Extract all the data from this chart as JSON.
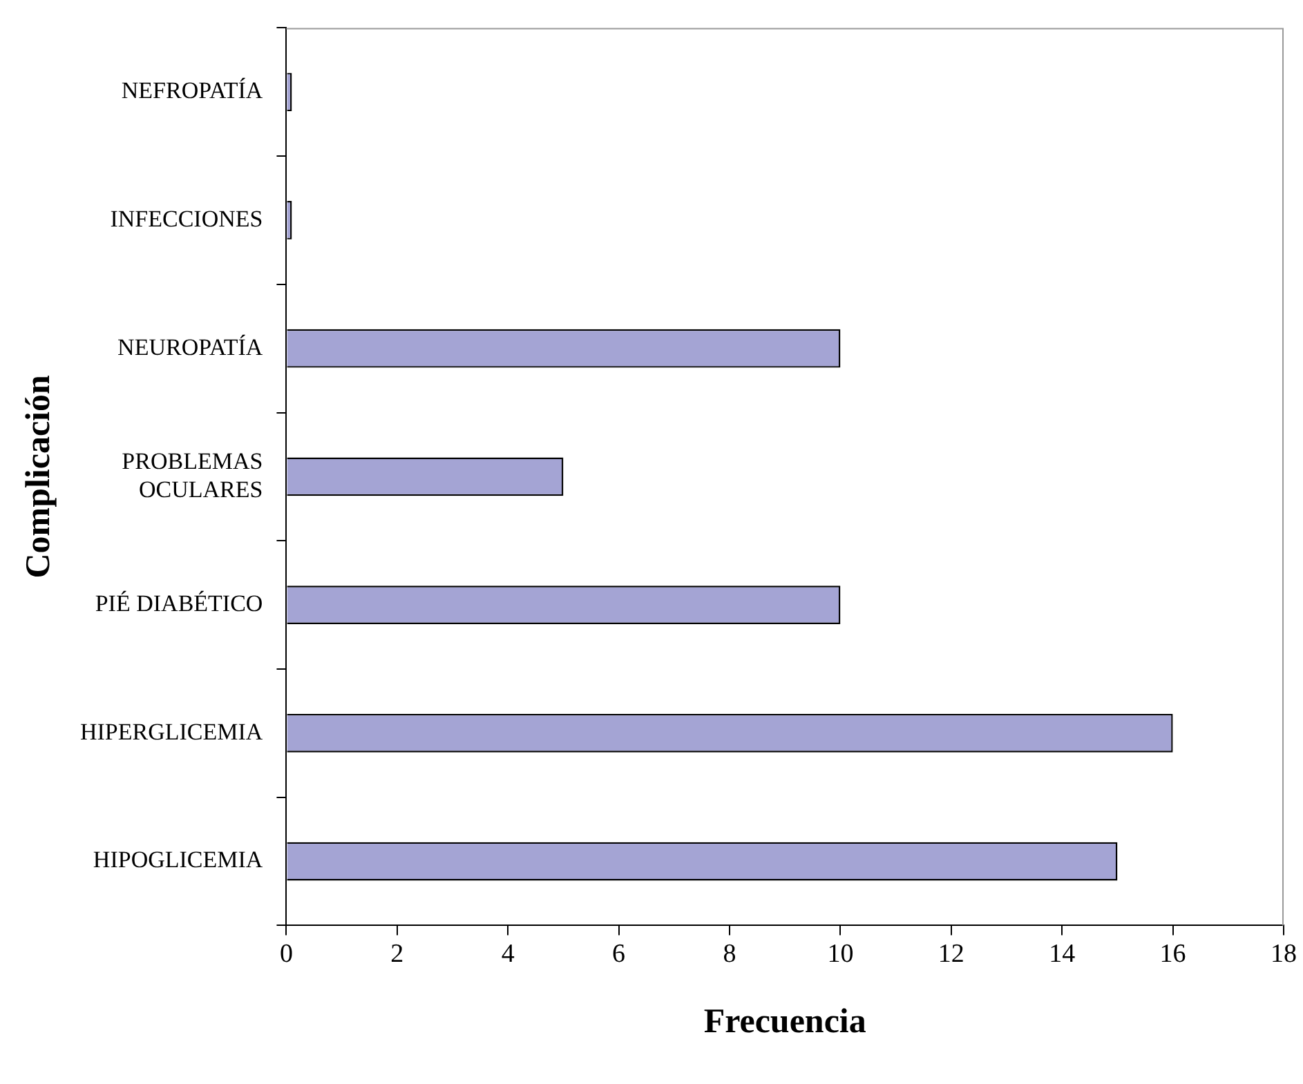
{
  "chart_data": {
    "type": "bar",
    "orientation": "horizontal",
    "xlabel": "Frecuencia",
    "ylabel": "Complicación",
    "categories": [
      "NEFROPATÍA",
      "INFECCIONES",
      "NEUROPATÍA",
      "PROBLEMAS OCULARES",
      "PIÉ DIABÉTICO",
      "HIPERGLICEMIA",
      "HIPOGLICEMIA"
    ],
    "values": [
      0.1,
      0.1,
      10,
      5,
      10,
      16,
      15
    ],
    "color": "#a4a4d4",
    "xlim": [
      0,
      18
    ],
    "xticks": [
      0,
      2,
      4,
      6,
      8,
      10,
      12,
      14,
      16,
      18
    ],
    "grid": false,
    "legend": false
  }
}
